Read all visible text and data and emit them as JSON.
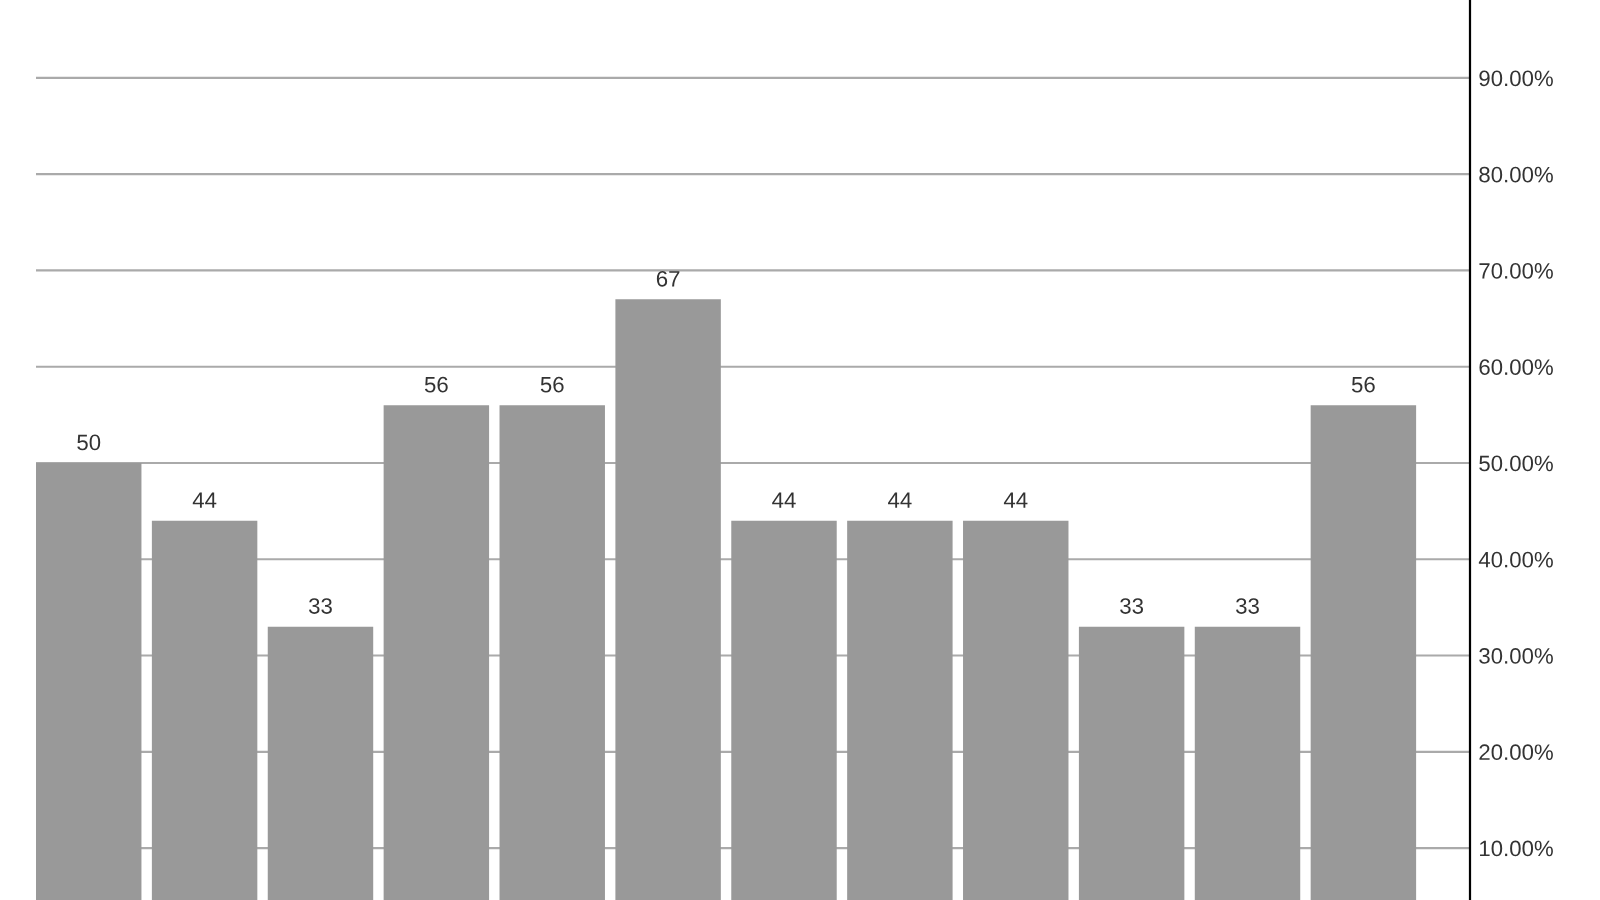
{
  "chart_data": {
    "type": "bar",
    "categories": [
      null,
      null,
      null,
      null,
      null,
      null,
      null,
      null,
      null,
      null,
      null,
      null
    ],
    "values": [
      50,
      44,
      33,
      56,
      56,
      67,
      44,
      44,
      44,
      33,
      33,
      56
    ],
    "color": "#999999",
    "data_labels": true,
    "grid": "y",
    "ylim": [
      4.6,
      98.1
    ],
    "yticks": [
      {
        "value": 10,
        "label": "10.00%"
      },
      {
        "value": 20,
        "label": "20.00%"
      },
      {
        "value": 30,
        "label": "30.00%"
      },
      {
        "value": 40,
        "label": "40.00%"
      },
      {
        "value": 50,
        "label": "50.00%"
      },
      {
        "value": 60,
        "label": "60.00%"
      },
      {
        "value": 70,
        "label": "70.00%"
      },
      {
        "value": 80,
        "label": "80.00%"
      },
      {
        "value": 90,
        "label": "90.00%"
      }
    ],
    "tick_labels": "y"
  }
}
